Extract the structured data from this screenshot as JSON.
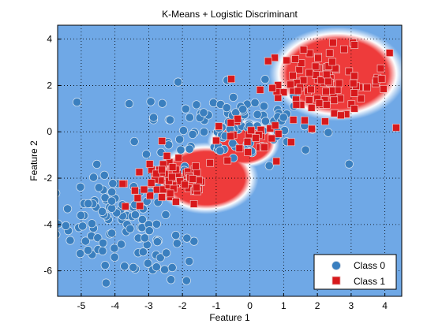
{
  "chart_data": {
    "type": "scatter",
    "title": "K-Means + Logistic Discriminant",
    "xlabel": "Feature 1",
    "ylabel": "Feature 2",
    "xlim": [
      -5.7,
      4.5
    ],
    "ylim": [
      -7.1,
      4.6
    ],
    "xticks": [
      -5,
      -4,
      -3,
      -2,
      -1,
      0,
      1,
      2,
      3,
      4
    ],
    "yticks": [
      -6,
      -4,
      -2,
      0,
      2,
      4
    ],
    "grid": true,
    "grid_style": "dotted",
    "legend_position": "bottom-right",
    "background": "decision-region map: red for Class 1, blue for Class 0, white at the boundary",
    "region_centers_class1": [
      {
        "x": 2.6,
        "y": 2.5,
        "spread": 1.7
      },
      {
        "x": -1.3,
        "y": -2.0,
        "spread": 1.3
      },
      {
        "x": -0.2,
        "y": -0.5,
        "spread": 0.9
      }
    ],
    "series": [
      {
        "name": "Class 0",
        "marker": "circle",
        "color": "#3a7fbf",
        "clusters": [
          {
            "cx": -4.0,
            "cy": -3.9,
            "sx": 0.85,
            "sy": 1.0,
            "n": 95
          },
          {
            "cx": -0.6,
            "cy": 0.3,
            "sx": 1.3,
            "sy": 0.85,
            "n": 110
          },
          {
            "cx": -2.7,
            "cy": -5.3,
            "sx": 0.5,
            "sy": 0.7,
            "n": 18
          }
        ]
      },
      {
        "name": "Class 1",
        "marker": "square",
        "color": "#d7191c",
        "clusters": [
          {
            "cx": 2.2,
            "cy": 2.1,
            "sx": 0.95,
            "sy": 0.75,
            "n": 95
          },
          {
            "cx": -2.3,
            "cy": -2.2,
            "sx": 0.7,
            "sy": 0.55,
            "n": 75
          },
          {
            "cx": -0.1,
            "cy": -0.5,
            "sx": 0.6,
            "sy": 0.5,
            "n": 25
          }
        ]
      }
    ]
  },
  "colors": {
    "class0": "#3a7fbf",
    "class1": "#d7191c",
    "region_blue": "#6fa8e6",
    "region_red": "#ee3b3b"
  }
}
